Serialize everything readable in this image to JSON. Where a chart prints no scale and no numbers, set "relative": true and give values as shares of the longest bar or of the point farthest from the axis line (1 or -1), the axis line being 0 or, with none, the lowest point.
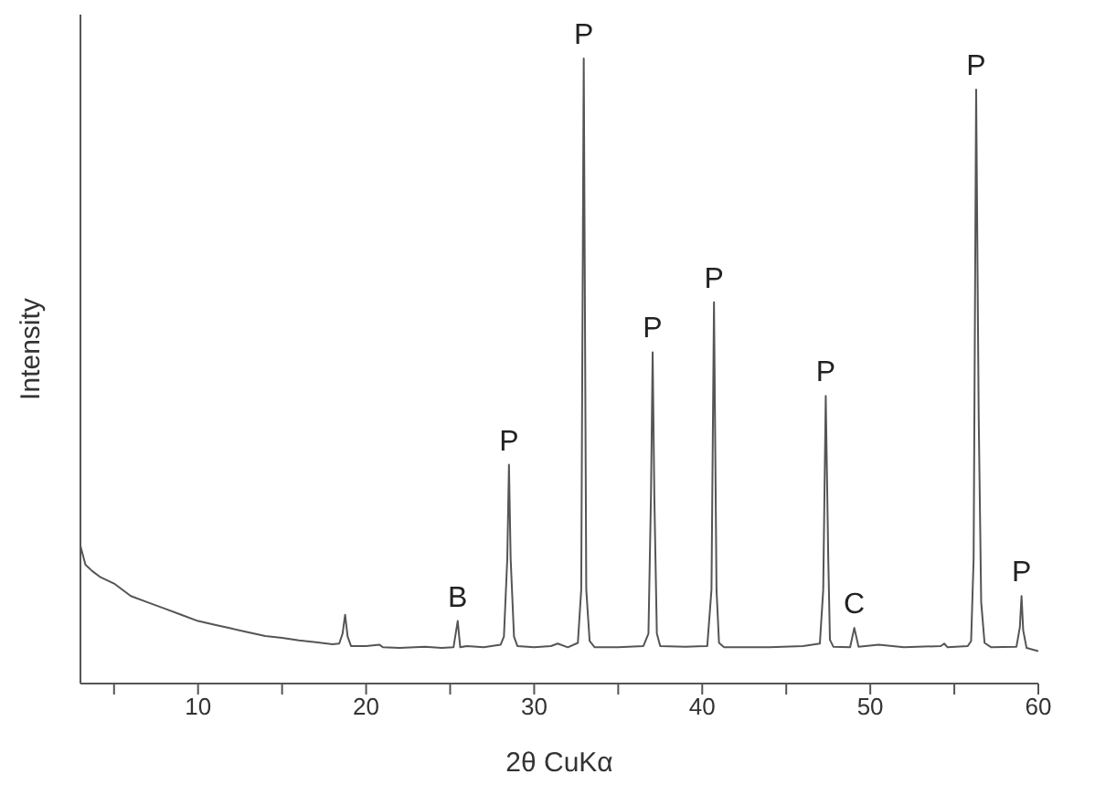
{
  "chart_data": {
    "type": "line",
    "relative": true,
    "xlabel": "2θ CuKα",
    "ylabel": "Intensity",
    "tick_labels": "x",
    "xlim": [
      3,
      60
    ],
    "xticks": [
      {
        "value": 5,
        "label": null
      },
      10,
      {
        "value": 15,
        "label": null
      },
      20,
      {
        "value": 25,
        "label": null
      },
      30,
      {
        "value": 35,
        "label": null
      },
      40,
      {
        "value": 45,
        "label": null
      },
      50,
      {
        "value": 55,
        "label": null
      },
      60
    ],
    "x": [
      3.0,
      3.3,
      3.7,
      4.2,
      5.0,
      6.0,
      7.0,
      8.0,
      9.0,
      10.0,
      11.0,
      12.0,
      13.0,
      14.0,
      15.0,
      16.0,
      17.0,
      18.0,
      18.4,
      18.6,
      18.75,
      18.9,
      19.1,
      20.0,
      20.8,
      21.0,
      22.0,
      23.5,
      24.5,
      25.2,
      25.45,
      25.6,
      26.0,
      27.0,
      28.0,
      28.2,
      28.4,
      28.5,
      28.6,
      28.8,
      29.0,
      30.0,
      31.0,
      31.4,
      32.0,
      32.6,
      32.8,
      32.95,
      33.1,
      33.3,
      33.6,
      35.0,
      36.5,
      36.8,
      36.95,
      37.05,
      37.15,
      37.3,
      37.5,
      39.0,
      40.3,
      40.55,
      40.7,
      40.85,
      41.0,
      41.3,
      44.0,
      46.0,
      47.0,
      47.2,
      47.35,
      47.5,
      47.6,
      47.8,
      48.8,
      49.05,
      49.3,
      50.5,
      52.0,
      54.2,
      54.4,
      54.6,
      55.8,
      56.0,
      56.15,
      56.3,
      56.45,
      56.6,
      56.8,
      57.2,
      58.7,
      58.9,
      59.0,
      59.1,
      59.3,
      60.0
    ],
    "values": [
      0.22,
      0.19,
      0.18,
      0.17,
      0.16,
      0.14,
      0.13,
      0.12,
      0.11,
      0.1,
      0.094,
      0.088,
      0.082,
      0.076,
      0.073,
      0.069,
      0.066,
      0.063,
      0.064,
      0.08,
      0.11,
      0.075,
      0.06,
      0.06,
      0.062,
      0.058,
      0.057,
      0.059,
      0.057,
      0.058,
      0.1,
      0.058,
      0.06,
      0.058,
      0.062,
      0.075,
      0.2,
      0.35,
      0.2,
      0.075,
      0.06,
      0.058,
      0.06,
      0.064,
      0.058,
      0.065,
      0.15,
      1.0,
      0.15,
      0.068,
      0.058,
      0.058,
      0.06,
      0.08,
      0.3,
      0.53,
      0.3,
      0.08,
      0.06,
      0.059,
      0.06,
      0.15,
      0.61,
      0.15,
      0.065,
      0.058,
      0.058,
      0.06,
      0.064,
      0.15,
      0.46,
      0.2,
      0.07,
      0.059,
      0.058,
      0.089,
      0.059,
      0.062,
      0.058,
      0.06,
      0.064,
      0.058,
      0.06,
      0.068,
      0.2,
      0.95,
      0.43,
      0.13,
      0.065,
      0.058,
      0.059,
      0.09,
      0.14,
      0.085,
      0.057,
      0.052
    ],
    "color": "#555555",
    "annotations": [
      {
        "text": "B",
        "x": 25.45,
        "y": 0.1
      },
      {
        "text": "P",
        "x": 28.5,
        "y": 0.35
      },
      {
        "text": "P",
        "x": 32.95,
        "y": 1.0
      },
      {
        "text": "P",
        "x": 37.05,
        "y": 0.53
      },
      {
        "text": "P",
        "x": 40.7,
        "y": 0.61
      },
      {
        "text": "P",
        "x": 47.35,
        "y": 0.46
      },
      {
        "text": "C",
        "x": 49.05,
        "y": 0.089
      },
      {
        "text": "P",
        "x": 56.3,
        "y": 0.95
      },
      {
        "text": "P",
        "x": 59.0,
        "y": 0.14
      }
    ]
  }
}
